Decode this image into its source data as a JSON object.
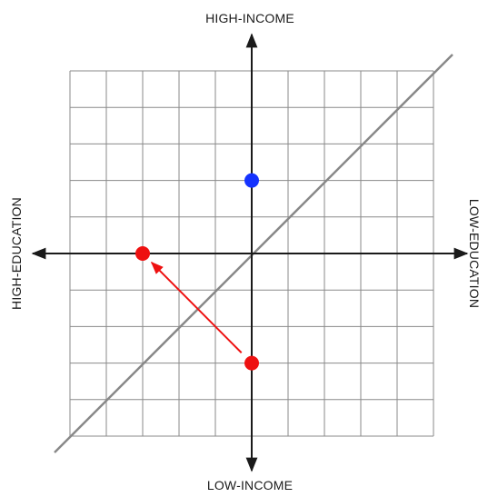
{
  "labels": {
    "top": "HIGH-INCOME",
    "bottom": "LOW-INCOME",
    "left": "HIGH-EDUCATION",
    "right": "LOW-EDUCATION"
  },
  "grid": {
    "columns": 10,
    "rows": 10
  },
  "points": [
    {
      "name": "blue-point",
      "col": 5,
      "row": 3,
      "color": "#1533ff"
    },
    {
      "name": "red-point-end",
      "col": 2,
      "row": 5,
      "color": "#ee1111"
    },
    {
      "name": "red-point-start",
      "col": 5,
      "row": 8,
      "color": "#ee1111"
    }
  ],
  "arrow": {
    "from_col": 5,
    "from_row": 8,
    "to_col": 2,
    "to_row": 5,
    "color": "#ee1111"
  },
  "colors": {
    "grid": "#8a8a8a",
    "axis": "#1a1a1a",
    "diagonal": "#888888"
  }
}
